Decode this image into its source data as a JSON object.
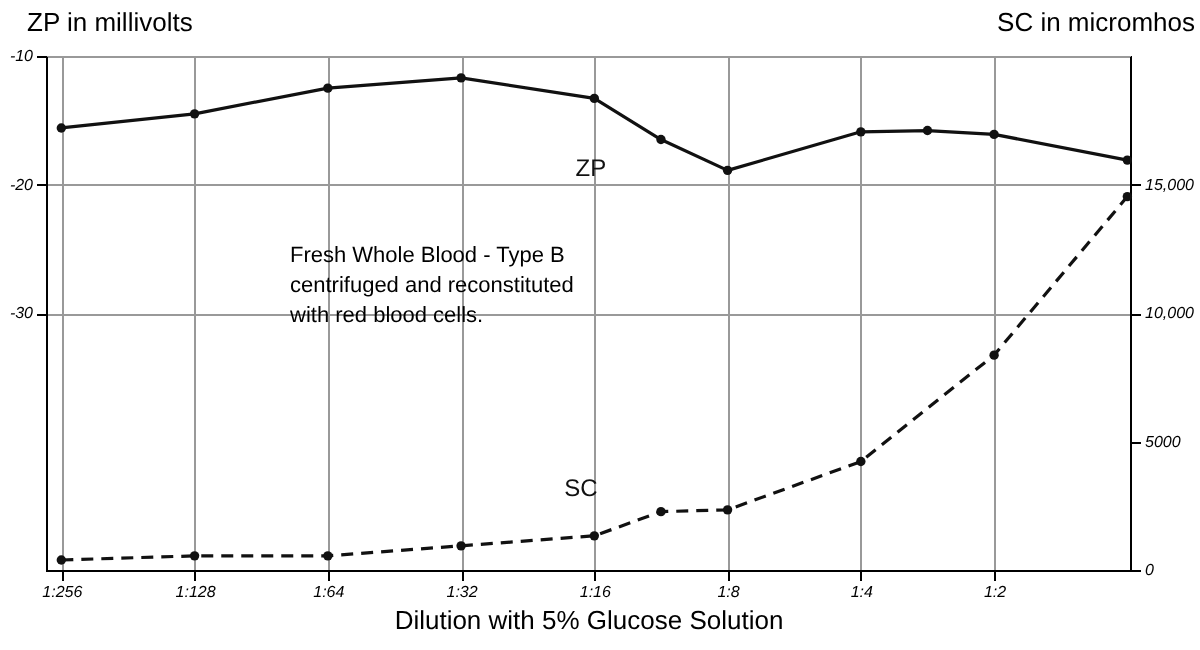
{
  "chart_data": {
    "type": "line",
    "xlabel": "Dilution with 5% Glucose Solution",
    "ylabel": "ZP in millivolts",
    "y2label": "SC in micromhos",
    "annotations": [
      "Fresh Whole Blood - Type B",
      "centrifuged and reconstituted",
      "with red blood cells."
    ],
    "categories": [
      "1:256",
      null,
      "1:128",
      null,
      "1:64",
      null,
      "1:32",
      null,
      "1:16",
      null,
      "1:8",
      null,
      "1:4",
      null,
      "1:2",
      null,
      null
    ],
    "ylim": [
      -50,
      -10
    ],
    "yticks": [
      -10,
      -20,
      -30
    ],
    "y2lim": [
      0,
      20000
    ],
    "y2ticks": [
      {
        "value": 0,
        "label": "0"
      },
      {
        "value": 5000,
        "label": "5000"
      },
      {
        "value": 10000,
        "label": "10,000"
      },
      {
        "value": 15000,
        "label": "15,000"
      }
    ],
    "grid": true,
    "marker": "circle",
    "series": [
      {
        "name": "ZP",
        "color": "#111111",
        "line_style": "solid",
        "values": [
          -15.6,
          null,
          -14.5,
          null,
          -12.5,
          null,
          -11.7,
          null,
          -13.3,
          -16.5,
          -18.9,
          null,
          -15.9,
          -15.8,
          -16.1,
          null,
          -18.1
        ]
      },
      {
        "name": "SC",
        "color": "#111111",
        "line_style": "dashed",
        "axis": "y2",
        "values": [
          390,
          null,
          550,
          null,
          550,
          null,
          940,
          null,
          1330,
          2270,
          2340,
          null,
          4220,
          null,
          8360,
          null,
          14530
        ]
      }
    ]
  }
}
